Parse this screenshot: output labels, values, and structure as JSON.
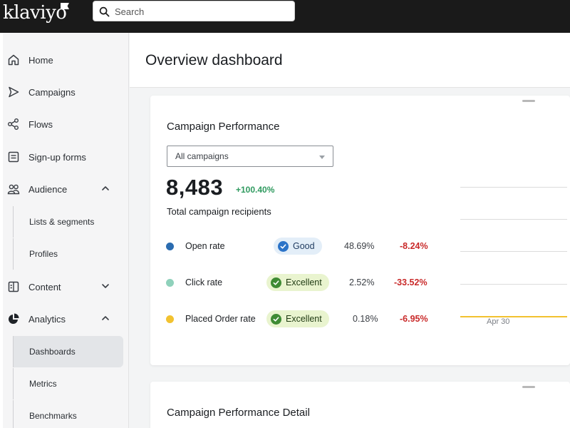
{
  "app": {
    "brand": "klaviyo"
  },
  "search": {
    "placeholder": "Search"
  },
  "sidebar": {
    "items": [
      {
        "label": "Home",
        "icon": "home-icon"
      },
      {
        "label": "Campaigns",
        "icon": "send-icon"
      },
      {
        "label": "Flows",
        "icon": "flows-icon"
      },
      {
        "label": "Sign-up forms",
        "icon": "form-icon"
      },
      {
        "label": "Audience",
        "icon": "people-icon",
        "expanded": true,
        "children": [
          {
            "label": "Lists & segments"
          },
          {
            "label": "Profiles"
          }
        ]
      },
      {
        "label": "Content",
        "icon": "content-icon",
        "expanded": false
      },
      {
        "label": "Analytics",
        "icon": "pie-chart-icon",
        "expanded": true,
        "children": [
          {
            "label": "Dashboards",
            "active": true
          },
          {
            "label": "Metrics"
          },
          {
            "label": "Benchmarks"
          }
        ]
      }
    ]
  },
  "page": {
    "title": "Overview dashboard"
  },
  "performance_card": {
    "title": "Campaign Performance",
    "filter": {
      "selected": "All campaigns"
    },
    "total": "8,483",
    "total_delta": "+100.40%",
    "total_label": "Total campaign recipients",
    "metrics": [
      {
        "name": "Open rate",
        "color": "#2b6cb0",
        "badge": "Good",
        "badge_type": "good",
        "value": "48.69%",
        "delta": "-8.24%"
      },
      {
        "name": "Click rate",
        "color": "#8fd1bb",
        "badge": "Excellent",
        "badge_type": "excellent",
        "value": "2.52%",
        "delta": "-33.52%"
      },
      {
        "name": "Placed Order rate",
        "color": "#f2c230",
        "badge": "Excellent",
        "badge_type": "excellent",
        "value": "0.18%",
        "delta": "-6.95%"
      }
    ],
    "chart": {
      "x_tick": "Apr 30"
    }
  },
  "detail_card": {
    "title": "Campaign Performance Detail"
  },
  "colors": {
    "topbar": "#1a1a1a",
    "positive": "#2f9a5f",
    "negative": "#c92a2a"
  }
}
